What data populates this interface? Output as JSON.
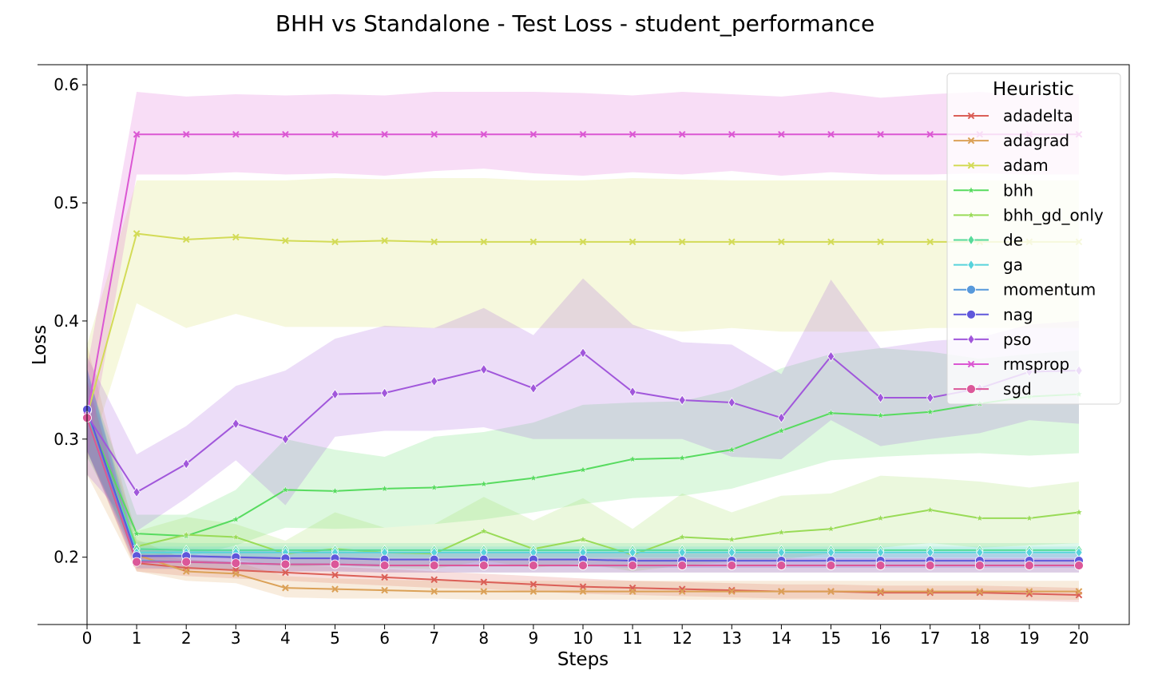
{
  "chart_data": {
    "type": "line",
    "title": "BHH vs Standalone - Test Loss - student_performance",
    "xlabel": "Steps",
    "ylabel": "Loss",
    "xlim": [
      0,
      20
    ],
    "ylim": [
      0.143,
      0.617
    ],
    "x_ticks": [
      0,
      1,
      2,
      3,
      4,
      5,
      6,
      7,
      8,
      9,
      10,
      11,
      12,
      13,
      14,
      15,
      16,
      17,
      18,
      19,
      20
    ],
    "y_ticks": [
      0.2,
      0.3,
      0.4,
      0.5,
      0.6
    ],
    "y_tick_labels": [
      "0.2",
      "0.3",
      "0.4",
      "0.5",
      "0.6"
    ],
    "grid": false,
    "legend": {
      "title": "Heuristic",
      "placement": "top-right"
    },
    "x": [
      0,
      1,
      2,
      3,
      4,
      5,
      6,
      7,
      8,
      9,
      10,
      11,
      12,
      13,
      14,
      15,
      16,
      17,
      18,
      19,
      20
    ],
    "series": [
      {
        "name": "adadelta",
        "color": "#db5f57",
        "marker": "x",
        "values": [
          0.318,
          0.195,
          0.191,
          0.189,
          0.187,
          0.185,
          0.183,
          0.181,
          0.179,
          0.177,
          0.175,
          0.174,
          0.173,
          0.172,
          0.171,
          0.171,
          0.17,
          0.17,
          0.17,
          0.169,
          0.168
        ],
        "lower": [
          0.29,
          0.188,
          0.184,
          0.182,
          0.18,
          0.178,
          0.176,
          0.174,
          0.173,
          0.171,
          0.169,
          0.168,
          0.167,
          0.166,
          0.165,
          0.165,
          0.164,
          0.164,
          0.164,
          0.163,
          0.162
        ],
        "upper": [
          0.35,
          0.203,
          0.198,
          0.196,
          0.194,
          0.192,
          0.19,
          0.188,
          0.186,
          0.184,
          0.182,
          0.18,
          0.179,
          0.178,
          0.177,
          0.177,
          0.176,
          0.176,
          0.176,
          0.175,
          0.174
        ]
      },
      {
        "name": "adagrad",
        "color": "#dba157",
        "marker": "x",
        "values": [
          0.32,
          0.202,
          0.188,
          0.186,
          0.174,
          0.173,
          0.172,
          0.171,
          0.171,
          0.171,
          0.171,
          0.171,
          0.171,
          0.171,
          0.171,
          0.171,
          0.171,
          0.171,
          0.171,
          0.171,
          0.171
        ],
        "lower": [
          0.27,
          0.188,
          0.18,
          0.178,
          0.166,
          0.165,
          0.165,
          0.165,
          0.164,
          0.164,
          0.164,
          0.164,
          0.164,
          0.164,
          0.164,
          0.164,
          0.164,
          0.164,
          0.164,
          0.164,
          0.164
        ],
        "upper": [
          0.38,
          0.215,
          0.198,
          0.196,
          0.184,
          0.182,
          0.181,
          0.18,
          0.18,
          0.18,
          0.18,
          0.18,
          0.18,
          0.18,
          0.18,
          0.18,
          0.18,
          0.18,
          0.18,
          0.18,
          0.18
        ]
      },
      {
        "name": "adam",
        "color": "#d3db57",
        "marker": "x",
        "values": [
          0.32,
          0.474,
          0.469,
          0.471,
          0.468,
          0.467,
          0.468,
          0.467,
          0.467,
          0.467,
          0.467,
          0.467,
          0.467,
          0.467,
          0.467,
          0.467,
          0.467,
          0.467,
          0.467,
          0.467,
          0.467
        ],
        "lower": [
          0.28,
          0.415,
          0.394,
          0.406,
          0.395,
          0.395,
          0.395,
          0.394,
          0.394,
          0.394,
          0.394,
          0.394,
          0.391,
          0.394,
          0.391,
          0.391,
          0.391,
          0.394,
          0.394,
          0.394,
          0.394
        ],
        "upper": [
          0.38,
          0.519,
          0.519,
          0.519,
          0.519,
          0.521,
          0.52,
          0.521,
          0.521,
          0.519,
          0.519,
          0.521,
          0.52,
          0.519,
          0.519,
          0.519,
          0.519,
          0.519,
          0.519,
          0.519,
          0.519
        ]
      },
      {
        "name": "bhh",
        "color": "#57db5f",
        "marker": "star",
        "values": [
          0.32,
          0.22,
          0.218,
          0.232,
          0.257,
          0.256,
          0.258,
          0.259,
          0.262,
          0.267,
          0.274,
          0.283,
          0.284,
          0.291,
          0.307,
          0.322,
          0.32,
          0.323,
          0.33,
          0.336,
          0.338
        ],
        "lower": [
          0.285,
          0.205,
          0.2,
          0.21,
          0.225,
          0.224,
          0.225,
          0.228,
          0.232,
          0.238,
          0.245,
          0.25,
          0.252,
          0.258,
          0.27,
          0.282,
          0.285,
          0.287,
          0.288,
          0.286,
          0.288
        ],
        "upper": [
          0.355,
          0.236,
          0.236,
          0.257,
          0.3,
          0.291,
          0.285,
          0.302,
          0.306,
          0.314,
          0.329,
          0.331,
          0.332,
          0.342,
          0.36,
          0.372,
          0.377,
          0.374,
          0.368,
          0.372,
          0.375
        ]
      },
      {
        "name": "bhh_gd_only",
        "color": "#99db57",
        "marker": "star",
        "values": [
          0.32,
          0.209,
          0.219,
          0.217,
          0.203,
          0.207,
          0.204,
          0.203,
          0.222,
          0.207,
          0.215,
          0.202,
          0.217,
          0.215,
          0.221,
          0.224,
          0.233,
          0.24,
          0.233,
          0.233,
          0.238
        ],
        "lower": [
          0.29,
          0.198,
          0.205,
          0.198,
          0.192,
          0.193,
          0.191,
          0.19,
          0.197,
          0.191,
          0.195,
          0.188,
          0.193,
          0.196,
          0.198,
          0.203,
          0.208,
          0.212,
          0.208,
          0.21,
          0.212
        ],
        "upper": [
          0.35,
          0.222,
          0.234,
          0.228,
          0.214,
          0.238,
          0.225,
          0.228,
          0.251,
          0.231,
          0.25,
          0.224,
          0.254,
          0.238,
          0.252,
          0.254,
          0.269,
          0.267,
          0.264,
          0.259,
          0.264
        ]
      },
      {
        "name": "de",
        "color": "#57db99",
        "marker": "diamond",
        "values": [
          0.322,
          0.207,
          0.206,
          0.206,
          0.206,
          0.206,
          0.206,
          0.206,
          0.206,
          0.206,
          0.206,
          0.206,
          0.206,
          0.206,
          0.206,
          0.206,
          0.206,
          0.206,
          0.206,
          0.206,
          0.206
        ],
        "lower": [
          0.29,
          0.201,
          0.2,
          0.2,
          0.2,
          0.2,
          0.2,
          0.2,
          0.2,
          0.2,
          0.2,
          0.2,
          0.2,
          0.2,
          0.2,
          0.2,
          0.2,
          0.2,
          0.2,
          0.2,
          0.2
        ],
        "upper": [
          0.36,
          0.213,
          0.212,
          0.212,
          0.212,
          0.212,
          0.212,
          0.212,
          0.212,
          0.212,
          0.212,
          0.212,
          0.212,
          0.212,
          0.212,
          0.212,
          0.212,
          0.212,
          0.212,
          0.212,
          0.212
        ]
      },
      {
        "name": "ga",
        "color": "#57d3db",
        "marker": "diamond",
        "values": [
          0.323,
          0.204,
          0.204,
          0.204,
          0.204,
          0.204,
          0.204,
          0.204,
          0.204,
          0.204,
          0.204,
          0.204,
          0.204,
          0.204,
          0.204,
          0.204,
          0.204,
          0.204,
          0.204,
          0.204,
          0.204
        ],
        "lower": [
          0.29,
          0.199,
          0.199,
          0.199,
          0.199,
          0.199,
          0.199,
          0.199,
          0.199,
          0.199,
          0.199,
          0.199,
          0.199,
          0.199,
          0.199,
          0.199,
          0.199,
          0.199,
          0.199,
          0.199,
          0.199
        ],
        "upper": [
          0.36,
          0.209,
          0.209,
          0.209,
          0.209,
          0.209,
          0.209,
          0.209,
          0.209,
          0.209,
          0.209,
          0.209,
          0.209,
          0.209,
          0.209,
          0.209,
          0.209,
          0.209,
          0.209,
          0.209,
          0.209
        ]
      },
      {
        "name": "momentum",
        "color": "#5799db",
        "marker": "circle",
        "values": [
          0.324,
          0.197,
          0.196,
          0.195,
          0.194,
          0.194,
          0.193,
          0.193,
          0.193,
          0.193,
          0.193,
          0.193,
          0.193,
          0.193,
          0.193,
          0.193,
          0.193,
          0.193,
          0.193,
          0.193,
          0.193
        ],
        "lower": [
          0.29,
          0.191,
          0.19,
          0.189,
          0.188,
          0.188,
          0.187,
          0.187,
          0.187,
          0.187,
          0.187,
          0.187,
          0.187,
          0.187,
          0.187,
          0.187,
          0.187,
          0.187,
          0.187,
          0.187,
          0.187
        ],
        "upper": [
          0.36,
          0.203,
          0.202,
          0.201,
          0.2,
          0.2,
          0.199,
          0.199,
          0.199,
          0.199,
          0.199,
          0.199,
          0.199,
          0.199,
          0.199,
          0.199,
          0.199,
          0.199,
          0.199,
          0.199,
          0.199
        ]
      },
      {
        "name": "nag",
        "color": "#5f57db",
        "marker": "circle",
        "values": [
          0.325,
          0.201,
          0.201,
          0.2,
          0.199,
          0.199,
          0.198,
          0.198,
          0.198,
          0.198,
          0.198,
          0.197,
          0.197,
          0.197,
          0.197,
          0.197,
          0.197,
          0.197,
          0.197,
          0.197,
          0.197
        ],
        "lower": [
          0.29,
          0.195,
          0.195,
          0.194,
          0.193,
          0.193,
          0.192,
          0.192,
          0.192,
          0.192,
          0.192,
          0.191,
          0.191,
          0.191,
          0.191,
          0.191,
          0.191,
          0.191,
          0.191,
          0.191,
          0.191
        ],
        "upper": [
          0.36,
          0.207,
          0.207,
          0.206,
          0.205,
          0.205,
          0.204,
          0.204,
          0.204,
          0.204,
          0.204,
          0.203,
          0.203,
          0.203,
          0.203,
          0.203,
          0.203,
          0.203,
          0.203,
          0.203,
          0.203
        ]
      },
      {
        "name": "pso",
        "color": "#a157db",
        "marker": "diamond",
        "values": [
          0.32,
          0.255,
          0.279,
          0.313,
          0.3,
          0.338,
          0.339,
          0.349,
          0.359,
          0.343,
          0.373,
          0.34,
          0.333,
          0.331,
          0.318,
          0.37,
          0.335,
          0.335,
          0.343,
          0.357,
          0.358
        ],
        "lower": [
          0.27,
          0.222,
          0.25,
          0.282,
          0.244,
          0.302,
          0.307,
          0.307,
          0.31,
          0.3,
          0.3,
          0.3,
          0.3,
          0.285,
          0.283,
          0.316,
          0.294,
          0.3,
          0.305,
          0.316,
          0.313
        ],
        "upper": [
          0.37,
          0.287,
          0.311,
          0.345,
          0.358,
          0.385,
          0.396,
          0.394,
          0.411,
          0.388,
          0.436,
          0.397,
          0.382,
          0.38,
          0.355,
          0.435,
          0.377,
          0.383,
          0.386,
          0.397,
          0.4
        ]
      },
      {
        "name": "rmsprop",
        "color": "#db57d3",
        "marker": "x",
        "values": [
          0.32,
          0.558,
          0.558,
          0.558,
          0.558,
          0.558,
          0.558,
          0.558,
          0.558,
          0.558,
          0.558,
          0.558,
          0.558,
          0.558,
          0.558,
          0.558,
          0.558,
          0.558,
          0.558,
          0.558,
          0.558
        ],
        "lower": [
          0.28,
          0.524,
          0.524,
          0.526,
          0.524,
          0.525,
          0.523,
          0.527,
          0.529,
          0.525,
          0.523,
          0.526,
          0.524,
          0.527,
          0.523,
          0.526,
          0.524,
          0.524,
          0.525,
          0.524,
          0.524
        ],
        "upper": [
          0.36,
          0.594,
          0.59,
          0.592,
          0.591,
          0.592,
          0.591,
          0.594,
          0.594,
          0.594,
          0.593,
          0.591,
          0.594,
          0.592,
          0.59,
          0.594,
          0.589,
          0.592,
          0.594,
          0.591,
          0.592
        ]
      },
      {
        "name": "sgd",
        "color": "#db5799",
        "marker": "circle",
        "values": [
          0.318,
          0.196,
          0.196,
          0.195,
          0.194,
          0.194,
          0.193,
          0.193,
          0.193,
          0.193,
          0.193,
          0.193,
          0.193,
          0.193,
          0.193,
          0.193,
          0.193,
          0.193,
          0.193,
          0.193,
          0.193
        ],
        "lower": [
          0.29,
          0.19,
          0.19,
          0.189,
          0.188,
          0.188,
          0.187,
          0.187,
          0.187,
          0.187,
          0.187,
          0.187,
          0.187,
          0.187,
          0.187,
          0.187,
          0.187,
          0.187,
          0.187,
          0.187,
          0.187
        ],
        "upper": [
          0.35,
          0.202,
          0.202,
          0.201,
          0.2,
          0.2,
          0.199,
          0.199,
          0.199,
          0.199,
          0.199,
          0.199,
          0.199,
          0.199,
          0.199,
          0.199,
          0.199,
          0.199,
          0.199,
          0.199,
          0.199
        ]
      }
    ]
  }
}
